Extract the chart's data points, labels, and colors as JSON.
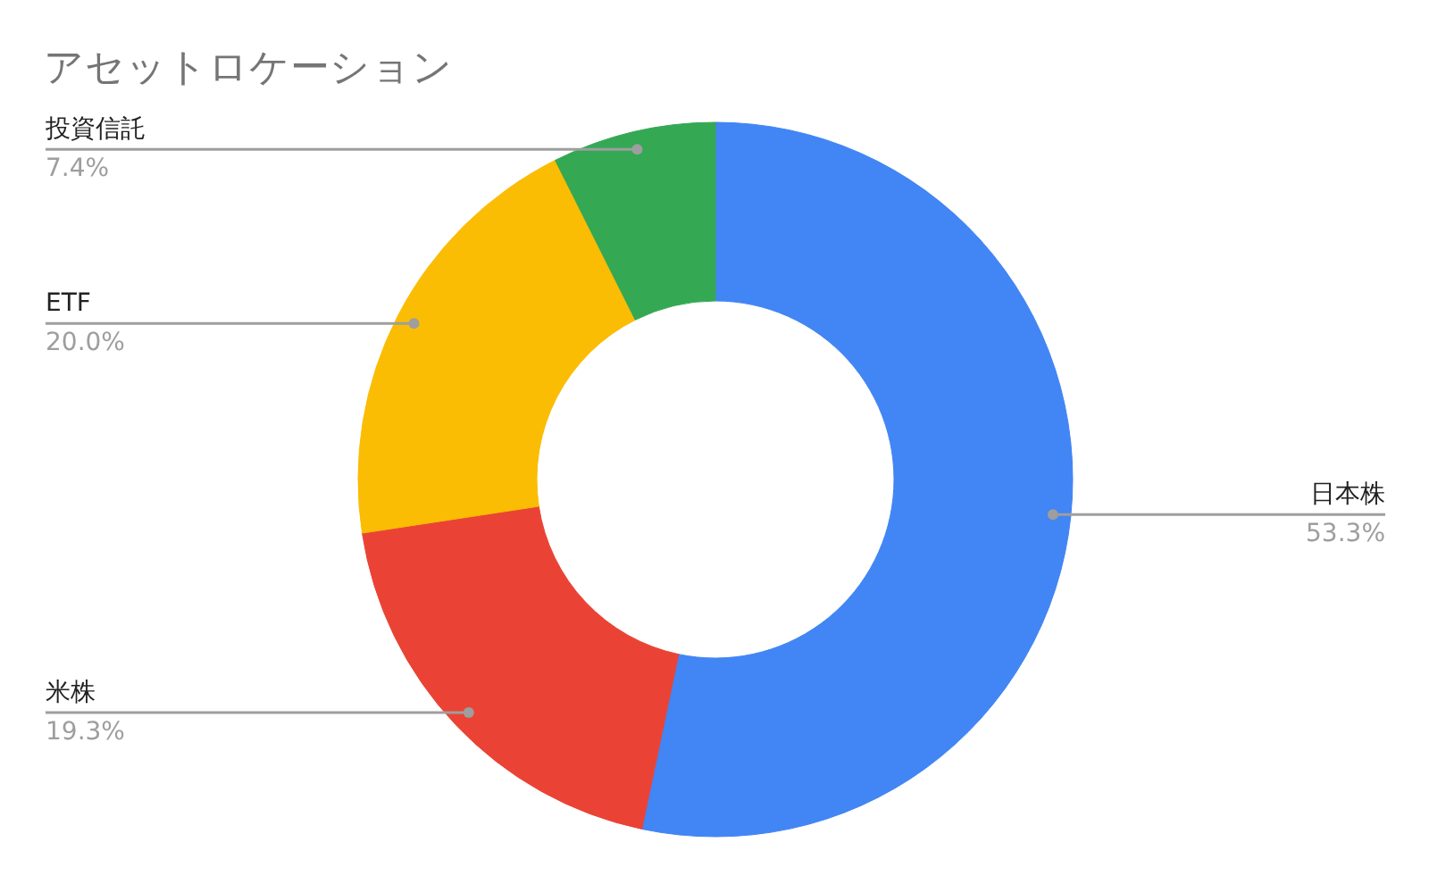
{
  "chart_data": {
    "type": "donut",
    "title": "アセットロケーション",
    "categories": [
      "日本株",
      "米株",
      "ETF",
      "投資信託"
    ],
    "values": [
      53.3,
      19.3,
      20.0,
      7.4
    ],
    "value_labels": [
      "53.3%",
      "19.3%",
      "20.0%",
      "7.4%"
    ],
    "colors": [
      "#4285f4",
      "#ea4335",
      "#fbbc04",
      "#34a853"
    ]
  }
}
